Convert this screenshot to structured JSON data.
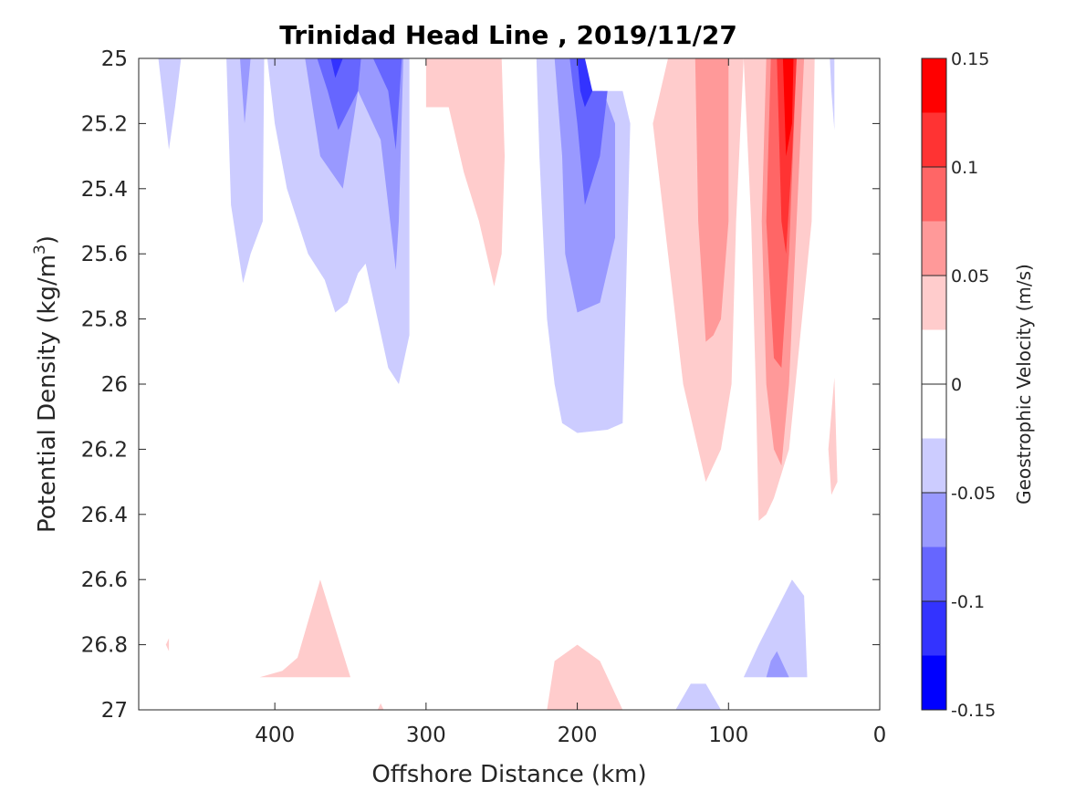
{
  "chart_data": {
    "type": "contour",
    "title": "Trinidad Head Line , 2019/11/27",
    "xlabel": "Offshore Distance (km)",
    "ylabel_main": "Potential Density (kg/m",
    "ylabel_sup": "3",
    "ylabel_end": ")",
    "xlim": [
      490,
      0
    ],
    "x_reversed": true,
    "ylim": [
      25,
      27
    ],
    "y_reversed": true,
    "xticks": [
      400,
      300,
      200,
      100,
      0
    ],
    "yticks": [
      25,
      25.2,
      25.4,
      25.6,
      25.8,
      26,
      26.2,
      26.4,
      26.6,
      26.8,
      27
    ],
    "ytick_labels": [
      "25",
      "25.2",
      "25.4",
      "25.6",
      "25.8",
      "26",
      "26.2",
      "26.4",
      "26.6",
      "26.8",
      "27"
    ],
    "colorbar": {
      "label": "Geostrophic Velocity (m/s)",
      "range": [
        -0.15,
        0.15
      ],
      "ticks": [
        0.15,
        0.1,
        0.05,
        0,
        -0.05,
        -0.1,
        -0.15
      ],
      "tick_labels": [
        "0.15",
        "0.1",
        "0.05",
        "0",
        "-0.05",
        "-0.1",
        "-0.15"
      ],
      "bands": [
        {
          "from": 0.125,
          "to": 0.15,
          "color": "#ff0000"
        },
        {
          "from": 0.1,
          "to": 0.125,
          "color": "#ff3333"
        },
        {
          "from": 0.075,
          "to": 0.1,
          "color": "#ff6666"
        },
        {
          "from": 0.05,
          "to": 0.075,
          "color": "#ff9999"
        },
        {
          "from": 0.025,
          "to": 0.05,
          "color": "#ffcccc"
        },
        {
          "from": 0.0,
          "to": 0.025,
          "color": "#ffffff"
        },
        {
          "from": -0.025,
          "to": 0.0,
          "color": "#ffffff"
        },
        {
          "from": -0.05,
          "to": -0.025,
          "color": "#ccccff"
        },
        {
          "from": -0.075,
          "to": -0.05,
          "color": "#9999ff"
        },
        {
          "from": -0.1,
          "to": -0.075,
          "color": "#6666ff"
        },
        {
          "from": -0.125,
          "to": -0.1,
          "color": "#3333ff"
        },
        {
          "from": -0.15,
          "to": -0.125,
          "color": "#0000ff"
        }
      ]
    },
    "regions": [
      {
        "level": -0.05,
        "color": "#ccccff",
        "pts": [
          [
            477,
            25
          ],
          [
            462,
            25
          ],
          [
            466,
            25.15
          ],
          [
            470,
            25.28
          ]
        ]
      },
      {
        "level": -0.05,
        "color": "#ccccff",
        "pts": [
          [
            432,
            25
          ],
          [
            407,
            25
          ],
          [
            408,
            25.5
          ],
          [
            416,
            25.6
          ],
          [
            421,
            25.69
          ],
          [
            429,
            25.45
          ]
        ]
      },
      {
        "level": -0.05,
        "color": "#ccccff",
        "pts": [
          [
            405,
            25
          ],
          [
            311,
            25
          ],
          [
            311,
            25.85
          ],
          [
            318,
            26
          ],
          [
            325,
            25.95
          ],
          [
            340,
            25.63
          ],
          [
            345,
            25.66
          ],
          [
            352,
            25.75
          ],
          [
            360,
            25.78
          ],
          [
            367,
            25.68
          ],
          [
            378,
            25.6
          ],
          [
            392,
            25.4
          ],
          [
            400,
            25.2
          ]
        ]
      },
      {
        "level": -0.05,
        "color": "#ccccff",
        "pts": [
          [
            227,
            25
          ],
          [
            225,
            25.3
          ],
          [
            220,
            25.8
          ],
          [
            215,
            26.0
          ],
          [
            210,
            26.12
          ],
          [
            200,
            26.15
          ],
          [
            180,
            26.14
          ],
          [
            170,
            26.12
          ],
          [
            165,
            25.2
          ],
          [
            170,
            25.1
          ],
          [
            190,
            25.1
          ],
          [
            195,
            25
          ]
        ]
      },
      {
        "level": -0.05,
        "color": "#ccccff",
        "pts": [
          [
            58,
            26.6
          ],
          [
            50,
            26.65
          ],
          [
            48,
            26.9
          ],
          [
            90,
            26.9
          ],
          [
            80,
            26.8
          ]
        ]
      },
      {
        "level": -0.05,
        "color": "#ccccff",
        "pts": [
          [
            135,
            27
          ],
          [
            125,
            26.92
          ],
          [
            115,
            26.92
          ],
          [
            105,
            27
          ]
        ]
      },
      {
        "level": -0.05,
        "color": "#ccccff",
        "pts": [
          [
            33,
            25
          ],
          [
            30,
            25
          ],
          [
            30,
            25.22
          ],
          [
            32,
            25.1
          ]
        ]
      },
      {
        "level": -0.075,
        "color": "#9999ff",
        "pts": [
          [
            423,
            25
          ],
          [
            416,
            25
          ],
          [
            419,
            25.15
          ],
          [
            420,
            25.2
          ]
        ]
      },
      {
        "level": -0.075,
        "color": "#9999ff",
        "pts": [
          [
            380,
            25
          ],
          [
            315,
            25
          ],
          [
            318,
            25.5
          ],
          [
            320,
            25.65
          ],
          [
            330,
            25.25
          ],
          [
            345,
            25.1
          ],
          [
            355,
            25.4
          ],
          [
            370,
            25.3
          ]
        ]
      },
      {
        "level": -0.075,
        "color": "#9999ff",
        "pts": [
          [
            215,
            25
          ],
          [
            210,
            25.3
          ],
          [
            208,
            25.6
          ],
          [
            200,
            25.78
          ],
          [
            185,
            25.75
          ],
          [
            175,
            25.55
          ],
          [
            175,
            25.2
          ],
          [
            183,
            25.1
          ],
          [
            190,
            25.1
          ],
          [
            198,
            25
          ]
        ]
      },
      {
        "level": -0.075,
        "color": "#9999ff",
        "pts": [
          [
            68,
            26.82
          ],
          [
            60,
            26.9
          ],
          [
            75,
            26.9
          ],
          [
            72,
            26.85
          ]
        ]
      },
      {
        "level": -0.1,
        "color": "#6666ff",
        "pts": [
          [
            372,
            25
          ],
          [
            343,
            25
          ],
          [
            345,
            25.1
          ],
          [
            358,
            25.22
          ],
          [
            365,
            25.1
          ]
        ]
      },
      {
        "level": -0.1,
        "color": "#6666ff",
        "pts": [
          [
            335,
            25
          ],
          [
            316,
            25
          ],
          [
            320,
            25.28
          ],
          [
            325,
            25.1
          ]
        ]
      },
      {
        "level": -0.1,
        "color": "#6666ff",
        "pts": [
          [
            205,
            25
          ],
          [
            200,
            25.2
          ],
          [
            195,
            25.45
          ],
          [
            185,
            25.3
          ],
          [
            180,
            25.1
          ],
          [
            190,
            25.1
          ],
          [
            197,
            25
          ]
        ]
      },
      {
        "level": -0.125,
        "color": "#3333ff",
        "pts": [
          [
            363,
            25
          ],
          [
            355,
            25
          ],
          [
            360,
            25.06
          ]
        ]
      },
      {
        "level": -0.125,
        "color": "#3333ff",
        "pts": [
          [
            200,
            25
          ],
          [
            198,
            25.1
          ],
          [
            195,
            25.15
          ],
          [
            190,
            25.1
          ],
          [
            195,
            25
          ]
        ]
      },
      {
        "level": 0.05,
        "color": "#ffcccc",
        "pts": [
          [
            300,
            25
          ],
          [
            300,
            25.15
          ],
          [
            285,
            25.15
          ],
          [
            275,
            25.35
          ],
          [
            265,
            25.5
          ],
          [
            255,
            25.7
          ],
          [
            250,
            25.6
          ],
          [
            248,
            25.3
          ],
          [
            250,
            25
          ]
        ]
      },
      {
        "level": 0.05,
        "color": "#ffcccc",
        "pts": [
          [
            140,
            25
          ],
          [
            150,
            25.2
          ],
          [
            140,
            25.6
          ],
          [
            130,
            26.0
          ],
          [
            120,
            26.2
          ],
          [
            115,
            26.3
          ],
          [
            105,
            26.2
          ],
          [
            98,
            26.0
          ],
          [
            95,
            25.5
          ],
          [
            90,
            25
          ]
        ]
      },
      {
        "level": 0.05,
        "color": "#ffcccc",
        "pts": [
          [
            90,
            25
          ],
          [
            85,
            25.5
          ],
          [
            82,
            26.0
          ],
          [
            80,
            26.42
          ],
          [
            75,
            26.4
          ],
          [
            70,
            26.35
          ],
          [
            60,
            26.2
          ],
          [
            45,
            25.5
          ],
          [
            43,
            25
          ]
        ]
      },
      {
        "level": 0.05,
        "color": "#ffcccc",
        "pts": [
          [
            30,
            25.98
          ],
          [
            28,
            26.3
          ],
          [
            32,
            26.34
          ],
          [
            34,
            26.2
          ]
        ]
      },
      {
        "level": 0.05,
        "color": "#ffcccc",
        "pts": [
          [
            370,
            26.6
          ],
          [
            350,
            26.9
          ],
          [
            410,
            26.9
          ],
          [
            395,
            26.88
          ],
          [
            385,
            26.84
          ]
        ]
      },
      {
        "level": 0.05,
        "color": "#ffcccc",
        "pts": [
          [
            220,
            27
          ],
          [
            215,
            26.85
          ],
          [
            200,
            26.8
          ],
          [
            185,
            26.85
          ],
          [
            170,
            27
          ]
        ]
      },
      {
        "level": 0.05,
        "color": "#ffcccc",
        "pts": [
          [
            472,
            26.8
          ],
          [
            470,
            26.78
          ],
          [
            470,
            26.82
          ]
        ]
      },
      {
        "level": 0.05,
        "color": "#ffcccc",
        "pts": [
          [
            332,
            27
          ],
          [
            330,
            26.98
          ],
          [
            328,
            27
          ]
        ]
      },
      {
        "level": 0.075,
        "color": "#ff9999",
        "pts": [
          [
            122,
            25
          ],
          [
            120,
            25.5
          ],
          [
            115,
            25.87
          ],
          [
            110,
            25.85
          ],
          [
            105,
            25.8
          ],
          [
            100,
            25.5
          ],
          [
            100,
            25
          ]
        ]
      },
      {
        "level": 0.075,
        "color": "#ff9999",
        "pts": [
          [
            75,
            25
          ],
          [
            78,
            25.5
          ],
          [
            75,
            26.0
          ],
          [
            70,
            26.2
          ],
          [
            65,
            26.25
          ],
          [
            60,
            26.0
          ],
          [
            55,
            25.5
          ],
          [
            50,
            25
          ]
        ]
      },
      {
        "level": 0.1,
        "color": "#ff6666",
        "pts": [
          [
            72,
            25
          ],
          [
            75,
            25.5
          ],
          [
            70,
            25.92
          ],
          [
            65,
            25.95
          ],
          [
            60,
            25.6
          ],
          [
            55,
            25
          ]
        ]
      },
      {
        "level": 0.125,
        "color": "#ff3333",
        "pts": [
          [
            68,
            25
          ],
          [
            65,
            25.5
          ],
          [
            62,
            25.6
          ],
          [
            58,
            25.3
          ],
          [
            55,
            25
          ]
        ]
      },
      {
        "level": 0.15,
        "color": "#ff0000",
        "pts": [
          [
            64,
            25
          ],
          [
            62,
            25.3
          ],
          [
            58,
            25.2
          ],
          [
            57,
            25
          ]
        ]
      }
    ]
  }
}
